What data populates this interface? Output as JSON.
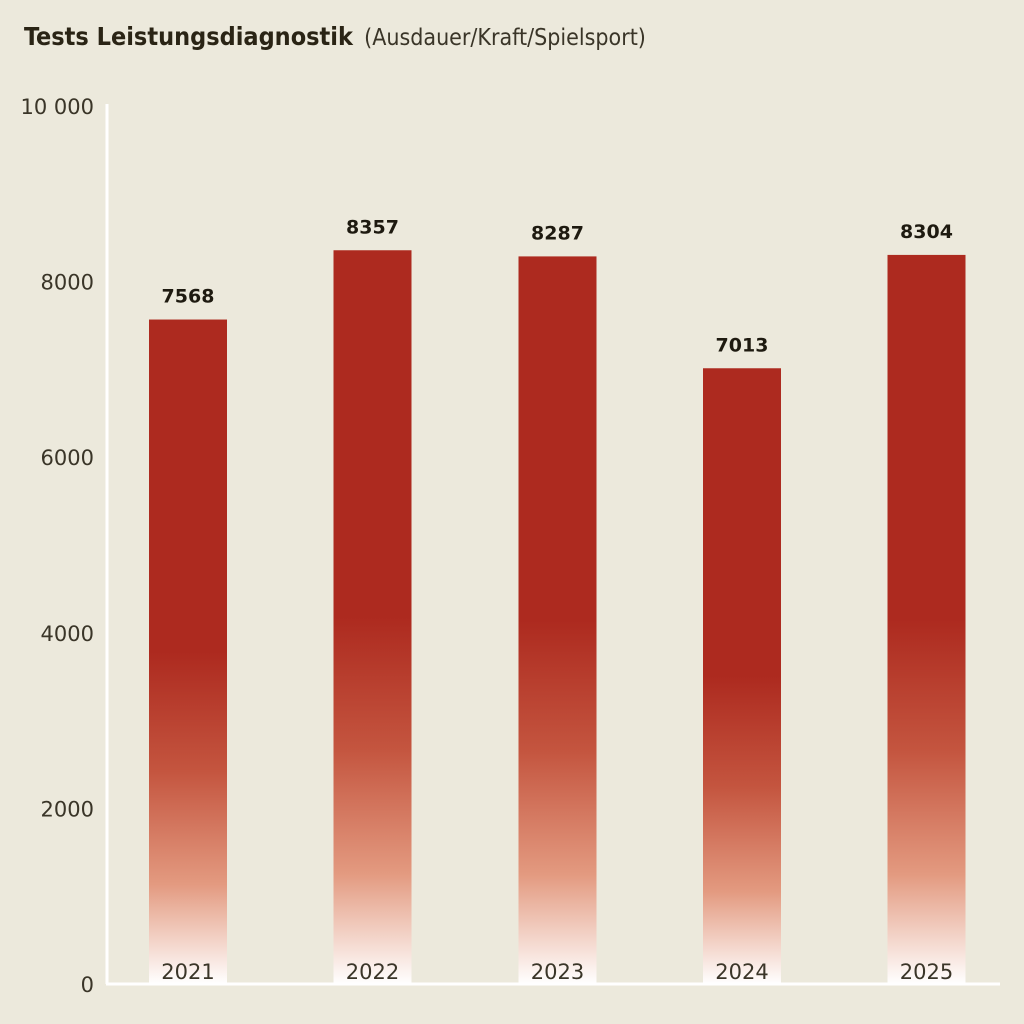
{
  "chart_data": {
    "type": "bar",
    "title": "Tests Leistungsdiagnostik",
    "subtitle": "(Ausdauer/Kraft/Spielsport)",
    "categories": [
      "2021",
      "2022",
      "2023",
      "2024",
      "2025"
    ],
    "values": [
      7568,
      8357,
      8287,
      7013,
      8304
    ],
    "value_labels": [
      "7568",
      "8357",
      "8287",
      "7013",
      "8304"
    ],
    "ylim": [
      0,
      10000
    ],
    "yticks": [
      0,
      2000,
      4000,
      6000,
      8000,
      10000
    ],
    "ytick_labels": [
      "0",
      "2000",
      "4000",
      "6000",
      "8000",
      "10 000"
    ],
    "xlabel": "",
    "ylabel": "",
    "grid": false,
    "colors": {
      "bar": "#ad2a1f",
      "bar_fade": "#e39a80",
      "background": "#ece9dc",
      "axis": "#ffffff"
    }
  }
}
